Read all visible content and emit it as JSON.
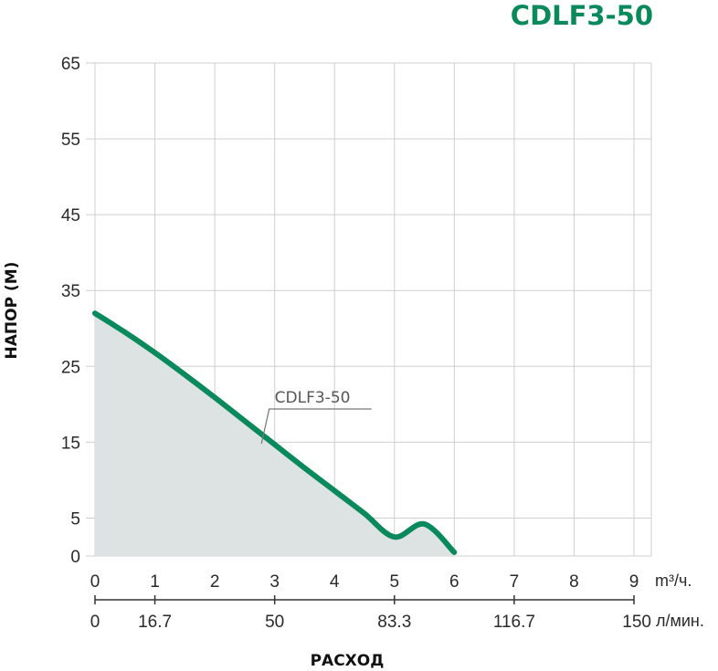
{
  "chart_data": {
    "type": "area",
    "title": "CDLF3-50",
    "xlabel": "РАСХОД",
    "ylabel": "НАПОР (М)",
    "x_unit": "m³/ч.",
    "x2_unit": "л/мин.",
    "xlim": [
      0,
      9
    ],
    "ylim": [
      0,
      65
    ],
    "x_ticks": [
      "0",
      "1",
      "2",
      "3",
      "4",
      "5",
      "6",
      "7",
      "8",
      "9"
    ],
    "x2_ticks": [
      {
        "x": 0,
        "label": "0"
      },
      {
        "x": 1,
        "label": "16.7"
      },
      {
        "x": 3,
        "label": "50"
      },
      {
        "x": 5,
        "label": "83.3"
      },
      {
        "x": 7,
        "label": "116.7"
      },
      {
        "x": 9,
        "label": "150"
      }
    ],
    "y_ticks": [
      0,
      5,
      15,
      25,
      35,
      45,
      55,
      65
    ],
    "grid": true,
    "series": [
      {
        "name": "CDLF3-50",
        "x": [
          0,
          0.5,
          1,
          1.5,
          2,
          2.5,
          3,
          3.5,
          4,
          4.5,
          5,
          5.5,
          6
        ],
        "y": [
          32,
          29.5,
          26.8,
          23.9,
          20.9,
          17.8,
          14.7,
          11.6,
          8.6,
          5.6,
          2.5,
          -0.8,
          -4.5
        ]
      }
    ],
    "colors": {
      "title": "#0a8a5c",
      "curve": "#0a8a5c",
      "fill": "#dde3e3",
      "grid": "#cfcfcf"
    }
  }
}
